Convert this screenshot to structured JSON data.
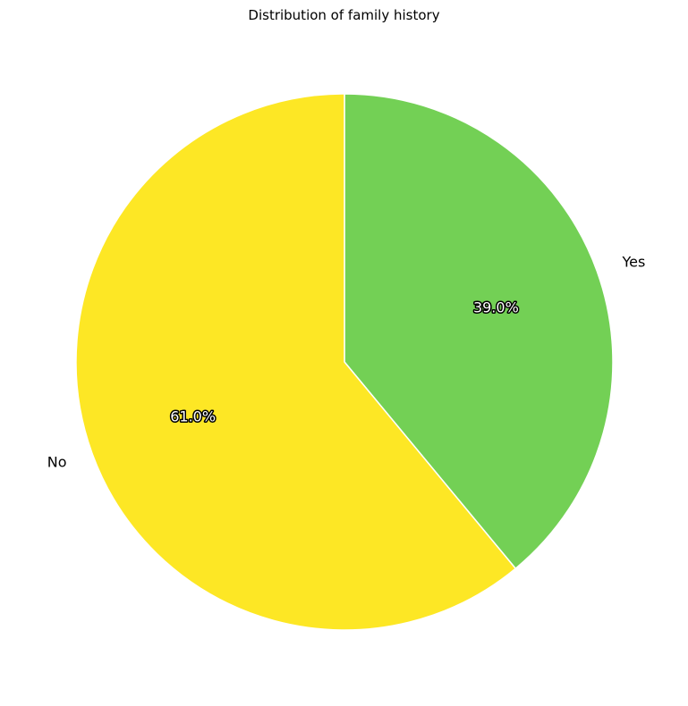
{
  "chart_data": {
    "type": "pie",
    "title": "Distribution of family history",
    "categories": [
      "Yes",
      "No"
    ],
    "values": [
      39.0,
      61.0
    ],
    "percent_labels": [
      "39.0%",
      "61.0%"
    ],
    "colors": [
      "#73d055",
      "#fde725"
    ],
    "edge_color": "#ffffff",
    "start_angle_deg": 90,
    "direction": "clockwise",
    "legend": "none"
  }
}
